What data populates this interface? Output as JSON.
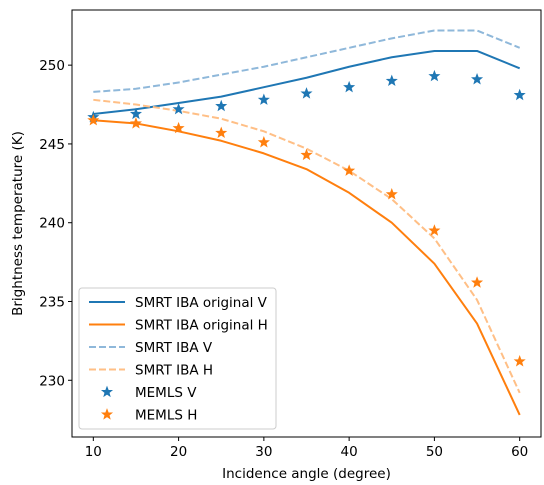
{
  "chart_data": {
    "type": "line",
    "title": "",
    "xlabel": "Incidence angle (degree)",
    "ylabel": "Brightness temperature (K)",
    "xlim": [
      7.5,
      62.5
    ],
    "ylim": [
      226.4,
      253.5
    ],
    "xticks": [
      10,
      20,
      30,
      40,
      50,
      60
    ],
    "yticks": [
      230,
      235,
      240,
      245,
      250
    ],
    "grid": false,
    "legend_position": "lower-left",
    "x": [
      10,
      15,
      20,
      25,
      30,
      35,
      40,
      45,
      50,
      55,
      60
    ],
    "series": [
      {
        "name": "SMRT IBA original V",
        "style": "solid-line",
        "color": "#1f77b4",
        "values": [
          246.9,
          247.2,
          247.6,
          248.0,
          248.6,
          249.2,
          249.9,
          250.5,
          250.9,
          250.9,
          249.8
        ]
      },
      {
        "name": "SMRT IBA original H",
        "style": "solid-line",
        "color": "#ff7f0e",
        "values": [
          246.5,
          246.3,
          245.8,
          245.2,
          244.4,
          243.4,
          241.9,
          240.0,
          237.4,
          233.6,
          227.8
        ]
      },
      {
        "name": "SMRT IBA V",
        "style": "dashed-line",
        "color": "#8fb8da",
        "values": [
          248.3,
          248.5,
          248.9,
          249.4,
          249.9,
          250.5,
          251.1,
          251.7,
          252.2,
          252.2,
          251.1
        ]
      },
      {
        "name": "SMRT IBA H",
        "style": "dashed-line",
        "color": "#ffbf86",
        "values": [
          247.8,
          247.5,
          247.1,
          246.6,
          245.8,
          244.7,
          243.3,
          241.5,
          239.0,
          235.1,
          229.2
        ]
      },
      {
        "name": "MEMLS V",
        "style": "star-markers",
        "color": "#1f77b4",
        "values": [
          246.7,
          246.9,
          247.2,
          247.4,
          247.8,
          248.2,
          248.6,
          249.0,
          249.3,
          249.1,
          248.1
        ]
      },
      {
        "name": "MEMLS H",
        "style": "star-markers",
        "color": "#ff7f0e",
        "values": [
          246.5,
          246.3,
          246.0,
          245.7,
          245.1,
          244.3,
          243.3,
          241.8,
          239.5,
          236.2,
          231.2
        ]
      }
    ]
  }
}
